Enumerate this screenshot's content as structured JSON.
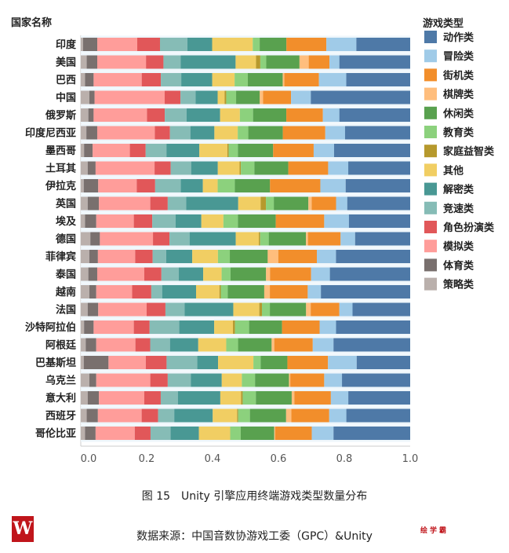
{
  "chart_data": {
    "type": "bar",
    "orientation": "horizontal",
    "stacked": true,
    "normalized": true,
    "ylabel": "国家名称",
    "legend_title": "游戏类型",
    "legend_placement": "right",
    "xlim": [
      0,
      1.0
    ],
    "xticks": [
      "0.0",
      "0.2",
      "0.4",
      "0.6",
      "0.8",
      "1.0"
    ],
    "categories": [
      "印度",
      "美国",
      "巴西",
      "中国",
      "俄罗斯",
      "印度尼西亚",
      "墨西哥",
      "土耳其",
      "伊拉克",
      "英国",
      "埃及",
      "德国",
      "菲律宾",
      "泰国",
      "越南",
      "法国",
      "沙特阿拉伯",
      "阿根廷",
      "巴基斯坦",
      "乌克兰",
      "意大利",
      "西班牙",
      "哥伦比亚"
    ],
    "series": [
      {
        "name": "策略类",
        "color": "#bab0ac",
        "values": [
          0.007,
          0.018,
          0.013,
          0.026,
          0.023,
          0.017,
          0.01,
          0.021,
          0.009,
          0.021,
          0.013,
          0.029,
          0.026,
          0.023,
          0.026,
          0.021,
          0.01,
          0.015,
          0.009,
          0.026,
          0.021,
          0.018,
          0.013
        ]
      },
      {
        "name": "体育类",
        "color": "#79706e",
        "values": [
          0.043,
          0.032,
          0.026,
          0.016,
          0.016,
          0.033,
          0.026,
          0.024,
          0.044,
          0.034,
          0.034,
          0.029,
          0.026,
          0.027,
          0.021,
          0.032,
          0.029,
          0.032,
          0.075,
          0.021,
          0.034,
          0.034,
          0.032
        ]
      },
      {
        "name": "模拟类",
        "color": "#ff9d9a",
        "values": [
          0.121,
          0.148,
          0.146,
          0.213,
          0.162,
          0.175,
          0.113,
          0.179,
          0.117,
          0.156,
          0.114,
          0.161,
          0.113,
          0.143,
          0.109,
          0.147,
          0.122,
          0.119,
          0.113,
          0.164,
          0.138,
          0.133,
          0.119
        ]
      },
      {
        "name": "角色扮演类",
        "color": "#e15759",
        "values": [
          0.069,
          0.053,
          0.058,
          0.048,
          0.054,
          0.046,
          0.048,
          0.049,
          0.056,
          0.053,
          0.056,
          0.05,
          0.053,
          0.052,
          0.058,
          0.057,
          0.048,
          0.045,
          0.063,
          0.053,
          0.05,
          0.05,
          0.048
        ]
      },
      {
        "name": "竞速类",
        "color": "#86bcb6",
        "values": [
          0.083,
          0.052,
          0.062,
          0.046,
          0.066,
          0.062,
          0.063,
          0.062,
          0.078,
          0.056,
          0.071,
          0.061,
          0.041,
          0.053,
          0.033,
          0.058,
          0.09,
          0.06,
          0.093,
          0.07,
          0.052,
          0.049,
          0.061
        ]
      },
      {
        "name": "解密类",
        "color": "#499894",
        "values": [
          0.075,
          0.167,
          0.094,
          0.067,
          0.102,
          0.073,
          0.1,
          0.081,
          0.067,
          0.158,
          0.078,
          0.14,
          0.079,
          0.074,
          0.103,
          0.148,
          0.106,
          0.086,
          0.063,
          0.094,
          0.129,
          0.117,
          0.086
        ]
      },
      {
        "name": "其他",
        "color": "#f1ce63",
        "values": [
          0.123,
          0.062,
          0.068,
          0.021,
          0.06,
          0.071,
          0.085,
          0.066,
          0.045,
          0.068,
          0.067,
          0.07,
          0.078,
          0.056,
          0.071,
          0.079,
          0.057,
          0.085,
          0.107,
          0.061,
          0.063,
          0.074,
          0.095
        ]
      },
      {
        "name": "家庭益智类",
        "color": "#b6992d",
        "values": [
          0,
          0.013,
          0,
          0.005,
          0,
          0,
          0.004,
          0.004,
          0,
          0.016,
          0,
          0.004,
          0,
          0,
          0.004,
          0.008,
          0.006,
          0,
          0,
          0,
          0.005,
          0.003,
          0
        ]
      },
      {
        "name": "教育类",
        "color": "#8cd17d",
        "values": [
          0.021,
          0.018,
          0.04,
          0.03,
          0.04,
          0.032,
          0.028,
          0.041,
          0.052,
          0.024,
          0.044,
          0.026,
          0.036,
          0.027,
          0.021,
          0.024,
          0.043,
          0.036,
          0.022,
          0.04,
          0.04,
          0.036,
          0.032
        ]
      },
      {
        "name": "休闲类",
        "color": "#59a14f",
        "values": [
          0.081,
          0.101,
          0.106,
          0.072,
          0.101,
          0.105,
          0.107,
          0.103,
          0.107,
          0.105,
          0.115,
          0.113,
          0.115,
          0.108,
          0.111,
          0.11,
          0.1,
          0.102,
          0.081,
          0.103,
          0.109,
          0.11,
          0.102
        ]
      },
      {
        "name": "棋牌类",
        "color": "#ffbe7d",
        "values": [
          0,
          0.028,
          0.005,
          0.01,
          0,
          0,
          0,
          0,
          0,
          0.01,
          0,
          0.006,
          0.032,
          0.012,
          0.017,
          0.014,
          0,
          0.008,
          0,
          0.004,
          0.008,
          0.016,
          0.003
        ]
      },
      {
        "name": "街机类",
        "color": "#f28e2b",
        "values": [
          0.121,
          0.063,
          0.105,
          0.085,
          0.111,
          0.129,
          0.123,
          0.121,
          0.153,
          0.074,
          0.147,
          0.099,
          0.117,
          0.125,
          0.115,
          0.087,
          0.114,
          0.117,
          0.123,
          0.103,
          0.111,
          0.115,
          0.111
        ]
      },
      {
        "name": "冒险类",
        "color": "#a0cbe8",
        "values": [
          0.091,
          0.03,
          0.083,
          0.06,
          0.05,
          0.06,
          0.062,
          0.061,
          0.077,
          0.034,
          0.075,
          0.044,
          0.058,
          0.057,
          0.04,
          0.04,
          0.05,
          0.063,
          0.087,
          0.054,
          0.053,
          0.052,
          0.066
        ]
      },
      {
        "name": "动作类",
        "color": "#4e79a7",
        "values": [
          0.163,
          0.215,
          0.194,
          0.302,
          0.215,
          0.198,
          0.231,
          0.188,
          0.196,
          0.191,
          0.186,
          0.167,
          0.225,
          0.244,
          0.271,
          0.175,
          0.225,
          0.233,
          0.162,
          0.207,
          0.188,
          0.194,
          0.233
        ]
      }
    ]
  },
  "caption": "图 15　Unity 引擎应用终端游戏类型数量分布",
  "source": "数据来源：中国音数协游戏工委（GPC）&Unity",
  "logo": "W",
  "watermark": "绘学霸"
}
